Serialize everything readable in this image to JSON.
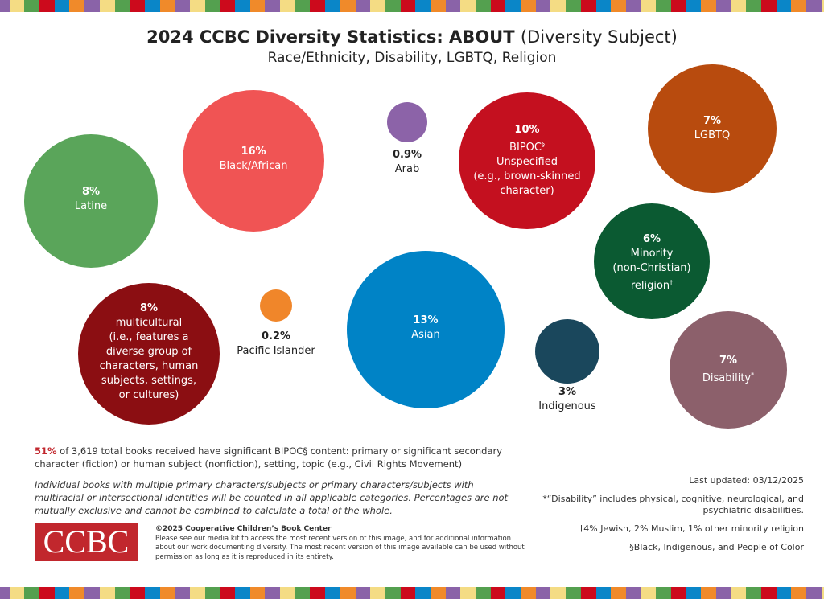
{
  "title": {
    "bold": "2024 CCBC Diversity Statistics: ABOUT",
    "normal": "(Diversity Subject)"
  },
  "subtitle": "Race/Ethnicity, Disability, LGBTQ, Religion",
  "stripe_colors": [
    "#8a63a8",
    "#f4dc84",
    "#54a04f",
    "#cc0a1c",
    "#0a86c8",
    "#f08a2a"
  ],
  "chart_data": {
    "type": "bubble",
    "unit": "percent of books",
    "bubbles": [
      {
        "pct": "8%",
        "value": 8,
        "label": [
          "Latine"
        ],
        "color": "#5aa55a",
        "inside": true
      },
      {
        "pct": "16%",
        "value": 16,
        "label": [
          "Black/African"
        ],
        "color": "#f05454",
        "inside": true
      },
      {
        "pct": "0.9%",
        "value": 0.9,
        "label": [
          "Arab"
        ],
        "color": "#8c63a8",
        "inside": false
      },
      {
        "pct": "10%",
        "value": 10,
        "label": [
          "BIPOC",
          "Unspecified",
          "(e.g., brown-skinned",
          "character)"
        ],
        "sup": "§",
        "color": "#c4101f",
        "inside": true
      },
      {
        "pct": "7%",
        "value": 7,
        "label": [
          "LGBTQ"
        ],
        "color": "#b84b0e",
        "inside": true
      },
      {
        "pct": "6%",
        "value": 6,
        "label": [
          "Minority",
          "(non-Christian)",
          "religion"
        ],
        "sup": "†",
        "color": "#0b5a32",
        "inside": true
      },
      {
        "pct": "8%",
        "value": 8,
        "label": [
          "multicultural",
          "(i.e., features a",
          "diverse group of",
          "characters, human",
          "subjects, settings,",
          "or cultures)"
        ],
        "color": "#8b0e12",
        "inside": true
      },
      {
        "pct": "0.2%",
        "value": 0.2,
        "label": [
          "Pacific Islander"
        ],
        "color": "#f0862a",
        "inside": false
      },
      {
        "pct": "13%",
        "value": 13,
        "label": [
          "Asian"
        ],
        "color": "#0083c6",
        "inside": true
      },
      {
        "pct": "3%",
        "value": 3,
        "label": [
          "Indigenous"
        ],
        "color": "#1a475c",
        "inside": false
      },
      {
        "pct": "7%",
        "value": 7,
        "label": [
          "Disability"
        ],
        "sup": "*",
        "color": "#8c606b",
        "inside": true
      }
    ]
  },
  "summary": {
    "pct": "51%",
    "text": " of 3,619 total books received have significant BIPOC§ content: primary or significant secondary character (fiction) or human subject (nonfiction), setting, topic (e.g., Civil Rights Movement)"
  },
  "note": "Individual books with multiple primary characters/subjects or primary characters/subjects with multiracial or intersectional identities will be counted in all applicable categories. Percentages are not mutually exclusive and cannot be combined to calculate a total of the whole.",
  "logo": "CCBC",
  "copyright": {
    "heading": "©2025 Cooperative Children’s Book Center",
    "body": "Please see our media kit to access the most recent version of this image, and for additional information about our work documenting diversity. The most recent version of this image available can be used without permission as long as it is reproduced in its entirety."
  },
  "footnotes": {
    "updated": "Last updated:  03/12/2025",
    "disability": "*“Disability” includes physical, cognitive, neurological, and psychiatric disabilities.",
    "religion": "†4% Jewish, 2% Muslim, 1% other minority religion",
    "bipoc": "§Black, Indigenous, and People of Color"
  }
}
